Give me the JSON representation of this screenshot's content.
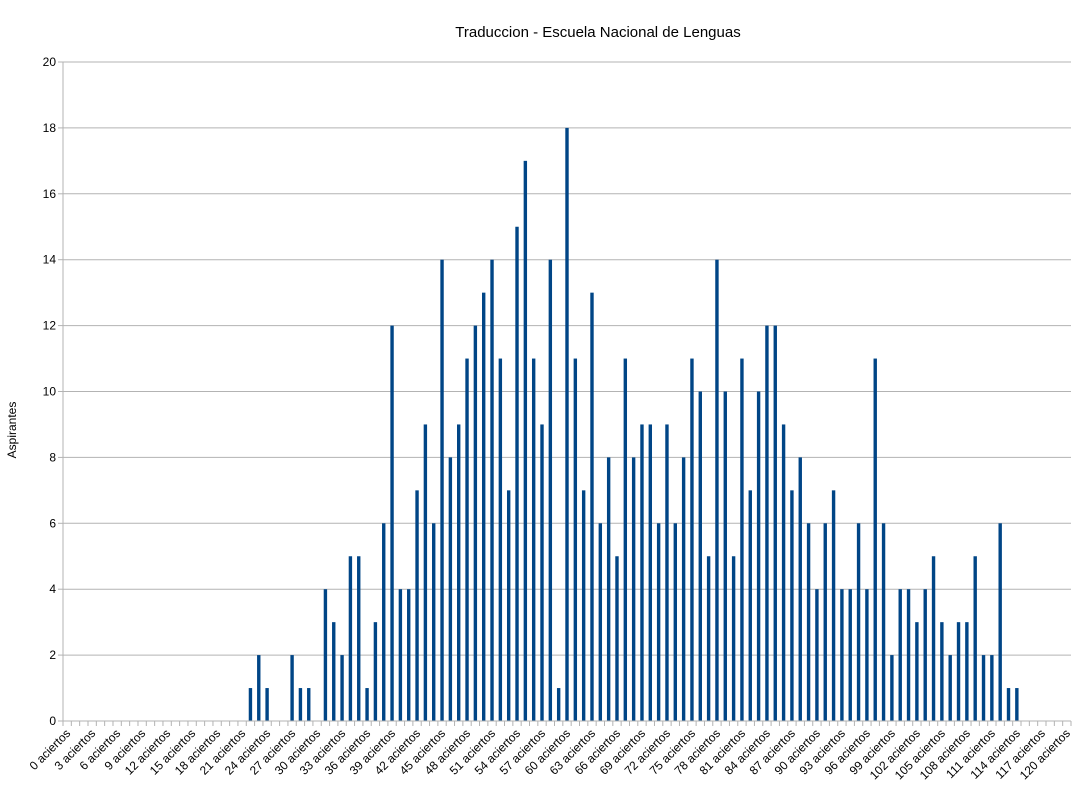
{
  "chart_data": {
    "type": "bar",
    "title": "Traduccion - Escuela Nacional de Lenguas",
    "xlabel": "",
    "ylabel": "Aspirantes",
    "ylim": [
      0,
      20
    ],
    "yticks": [
      0,
      2,
      4,
      6,
      8,
      10,
      12,
      14,
      16,
      18,
      20
    ],
    "grid": true,
    "legend": "none",
    "bar_color": "#004586",
    "categories": [
      "0 aciertos",
      "1 aciertos",
      "2 aciertos",
      "3 aciertos",
      "4 aciertos",
      "5 aciertos",
      "6 aciertos",
      "7 aciertos",
      "8 aciertos",
      "9 aciertos",
      "10 aciertos",
      "11 aciertos",
      "12 aciertos",
      "13 aciertos",
      "14 aciertos",
      "15 aciertos",
      "16 aciertos",
      "17 aciertos",
      "18 aciertos",
      "19 aciertos",
      "20 aciertos",
      "21 aciertos",
      "22 aciertos",
      "23 aciertos",
      "24 aciertos",
      "25 aciertos",
      "26 aciertos",
      "27 aciertos",
      "28 aciertos",
      "29 aciertos",
      "30 aciertos",
      "31 aciertos",
      "32 aciertos",
      "33 aciertos",
      "34 aciertos",
      "35 aciertos",
      "36 aciertos",
      "37 aciertos",
      "38 aciertos",
      "39 aciertos",
      "40 aciertos",
      "41 aciertos",
      "42 aciertos",
      "43 aciertos",
      "44 aciertos",
      "45 aciertos",
      "46 aciertos",
      "47 aciertos",
      "48 aciertos",
      "49 aciertos",
      "50 aciertos",
      "51 aciertos",
      "52 aciertos",
      "53 aciertos",
      "54 aciertos",
      "55 aciertos",
      "56 aciertos",
      "57 aciertos",
      "58 aciertos",
      "59 aciertos",
      "60 aciertos",
      "61 aciertos",
      "62 aciertos",
      "63 aciertos",
      "64 aciertos",
      "65 aciertos",
      "66 aciertos",
      "67 aciertos",
      "68 aciertos",
      "69 aciertos",
      "70 aciertos",
      "71 aciertos",
      "72 aciertos",
      "73 aciertos",
      "74 aciertos",
      "75 aciertos",
      "76 aciertos",
      "77 aciertos",
      "78 aciertos",
      "79 aciertos",
      "80 aciertos",
      "81 aciertos",
      "82 aciertos",
      "83 aciertos",
      "84 aciertos",
      "85 aciertos",
      "86 aciertos",
      "87 aciertos",
      "88 aciertos",
      "89 aciertos",
      "90 aciertos",
      "91 aciertos",
      "92 aciertos",
      "93 aciertos",
      "94 aciertos",
      "95 aciertos",
      "96 aciertos",
      "97 aciertos",
      "98 aciertos",
      "99 aciertos",
      "100 aciertos",
      "101 aciertos",
      "102 aciertos",
      "103 aciertos",
      "104 aciertos",
      "105 aciertos",
      "106 aciertos",
      "107 aciertos",
      "108 aciertos",
      "109 aciertos",
      "110 aciertos",
      "111 aciertos",
      "112 aciertos",
      "113 aciertos",
      "114 aciertos",
      "115 aciertos",
      "116 aciertos",
      "117 aciertos",
      "118 aciertos",
      "119 aciertos",
      "120 aciertos"
    ],
    "shown_tick_labels": [
      "0 aciertos",
      "3 aciertos",
      "6 aciertos",
      "9 aciertos",
      "12 aciertos",
      "15 aciertos",
      "18 aciertos",
      "21 aciertos",
      "24 aciertos",
      "27 aciertos",
      "30 aciertos",
      "33 aciertos",
      "36 aciertos",
      "39 aciertos",
      "42 aciertos",
      "45 aciertos",
      "48 aciertos",
      "51 aciertos",
      "54 aciertos",
      "57 aciertos",
      "60 aciertos",
      "63 aciertos",
      "66 aciertos",
      "69 aciertos",
      "72 aciertos",
      "75 aciertos",
      "78 aciertos",
      "81 aciertos",
      "84 aciertos",
      "87 aciertos",
      "90 aciertos",
      "93 aciertos",
      "96 aciertos",
      "99 aciertos",
      "102 aciertos",
      "105 aciertos",
      "108 aciertos",
      "111 aciertos",
      "114 aciertos",
      "117 aciertos",
      "120 aciertos"
    ],
    "values": [
      0,
      0,
      0,
      0,
      0,
      0,
      0,
      0,
      0,
      0,
      0,
      0,
      0,
      0,
      0,
      0,
      0,
      0,
      0,
      0,
      0,
      0,
      1,
      2,
      1,
      0,
      0,
      2,
      1,
      1,
      0,
      4,
      3,
      2,
      5,
      5,
      1,
      3,
      6,
      12,
      4,
      4,
      7,
      9,
      6,
      14,
      8,
      9,
      11,
      12,
      13,
      14,
      11,
      7,
      15,
      17,
      11,
      9,
      14,
      1,
      18,
      11,
      7,
      13,
      6,
      8,
      5,
      11,
      8,
      9,
      9,
      6,
      9,
      6,
      8,
      11,
      10,
      5,
      14,
      10,
      5,
      11,
      7,
      10,
      12,
      12,
      9,
      7,
      8,
      6,
      4,
      6,
      7,
      4,
      4,
      6,
      4,
      11,
      6,
      2,
      4,
      4,
      3,
      4,
      5,
      3,
      2,
      3,
      3,
      5,
      2,
      2,
      6,
      1,
      1,
      0,
      0,
      0,
      0,
      0,
      0
    ]
  }
}
